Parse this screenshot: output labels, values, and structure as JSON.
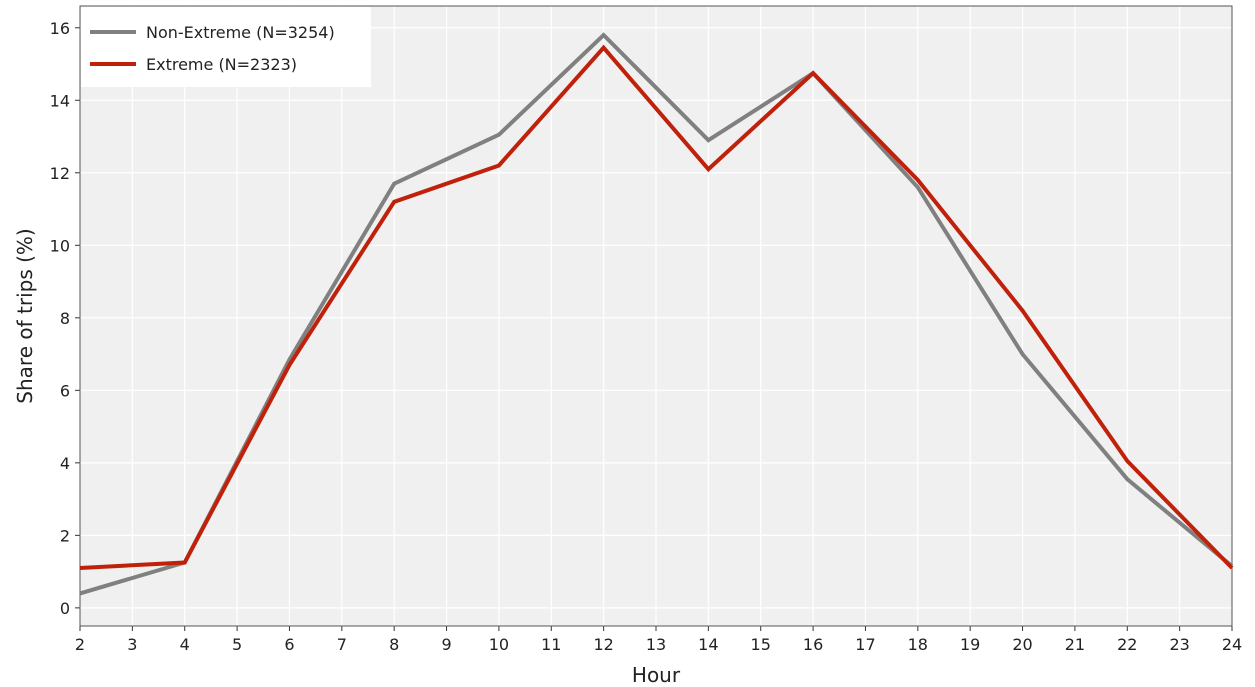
{
  "chart_data": {
    "type": "line",
    "xlabel": "Hour",
    "ylabel": "Share of trips (%)",
    "xlim": [
      2,
      24
    ],
    "ylim": [
      -0.5,
      16.6
    ],
    "x_ticks": [
      2,
      3,
      4,
      5,
      6,
      7,
      8,
      9,
      10,
      11,
      12,
      13,
      14,
      15,
      16,
      17,
      18,
      19,
      20,
      21,
      22,
      23,
      24
    ],
    "y_ticks": [
      0,
      2,
      4,
      6,
      8,
      10,
      12,
      14,
      16
    ],
    "grid": true,
    "legend_position": "top-left",
    "x": [
      2,
      4,
      6,
      8,
      10,
      12,
      14,
      16,
      18,
      20,
      22,
      24
    ],
    "series": [
      {
        "name": "Non-Extreme (N=3254)",
        "color": "#808080",
        "values": [
          0.4,
          1.25,
          6.85,
          11.7,
          13.05,
          15.8,
          12.9,
          14.75,
          11.6,
          7.0,
          3.55,
          1.15
        ]
      },
      {
        "name": "Extreme (N=2323)",
        "color": "#c0210b",
        "values": [
          1.1,
          1.25,
          6.7,
          11.2,
          12.2,
          15.45,
          12.1,
          14.75,
          11.8,
          8.2,
          4.05,
          1.1
        ]
      }
    ],
    "colors": {
      "plot_background": "#f0f0f0",
      "grid": "#ffffff"
    }
  }
}
